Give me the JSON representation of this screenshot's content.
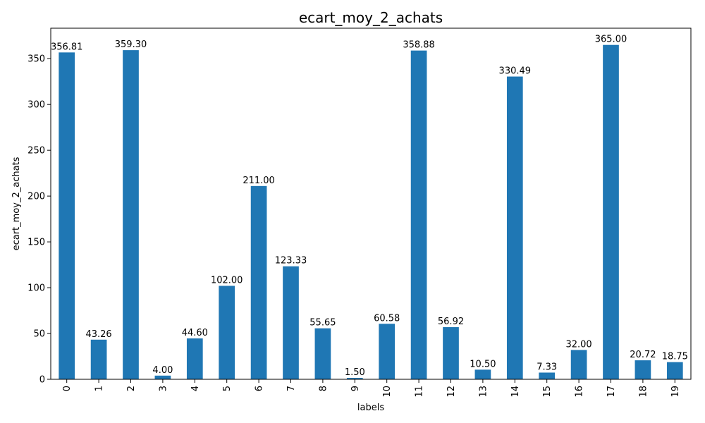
{
  "chart_data": {
    "type": "bar",
    "title": "ecart_moy_2_achats",
    "xlabel": "labels",
    "ylabel": "ecart_moy_2_achats",
    "categories": [
      "0",
      "1",
      "2",
      "3",
      "4",
      "5",
      "6",
      "7",
      "8",
      "9",
      "10",
      "11",
      "12",
      "13",
      "14",
      "15",
      "16",
      "17",
      "18",
      "19"
    ],
    "values": [
      356.81,
      43.26,
      359.3,
      4.0,
      44.6,
      102.0,
      211.0,
      123.33,
      55.65,
      1.5,
      60.58,
      358.88,
      56.92,
      10.5,
      330.49,
      7.33,
      32.0,
      365.0,
      20.72,
      18.75
    ],
    "data_labels": [
      "356.81",
      "43.26",
      "359.30",
      "4.00",
      "44.60",
      "102.00",
      "211.00",
      "123.33",
      "55.65",
      "1.50",
      "60.58",
      "358.88",
      "56.92",
      "10.50",
      "330.49",
      "7.33",
      "32.00",
      "365.00",
      "20.72",
      "18.75"
    ],
    "yticks": [
      0,
      50,
      100,
      150,
      200,
      250,
      300,
      350
    ],
    "ylim": [
      0,
      383.25
    ],
    "bar_color": "#1f77b4",
    "grid": false,
    "legend": "none"
  }
}
